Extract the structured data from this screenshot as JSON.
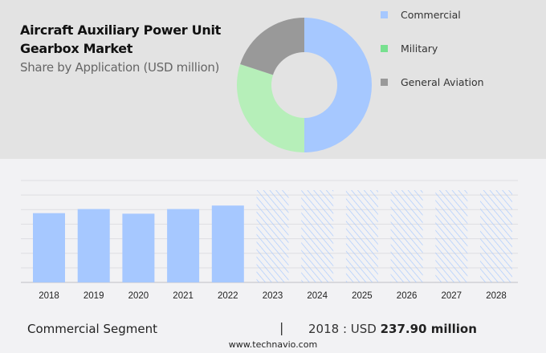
{
  "header": {
    "title": "Aircraft Auxiliary Power Unit Gearbox Market",
    "subtitle": "Share by Application (USD million)"
  },
  "chart_data": [
    {
      "type": "pie",
      "variant": "donut",
      "slices": [
        {
          "name": "Commercial",
          "value": 50,
          "color": "#a6c8ff"
        },
        {
          "name": "Military",
          "value": 30,
          "color": "#b6efb9"
        },
        {
          "name": "General Aviation",
          "value": 20,
          "color": "#999999"
        }
      ],
      "legend": {
        "placement": "right",
        "items": [
          {
            "label": "Commercial",
            "color": "#a6c8ff"
          },
          {
            "label": "Military",
            "color": "#77e08f"
          },
          {
            "label": "General Aviation",
            "color": "#999999"
          }
        ]
      }
    },
    {
      "type": "bar",
      "categories": [
        "2018",
        "2019",
        "2020",
        "2021",
        "2022",
        "2023",
        "2024",
        "2025",
        "2026",
        "2027",
        "2028"
      ],
      "values": [
        237.9,
        252,
        236,
        252,
        264,
        null,
        null,
        null,
        null,
        null,
        null
      ],
      "forecast_categories": [
        "2023",
        "2024",
        "2025",
        "2026",
        "2027",
        "2028"
      ],
      "ylim": [
        0,
        350
      ],
      "grid": true,
      "ytick_step": 50,
      "bar_color": "#a6c8ff",
      "forecast_style": "hatched"
    }
  ],
  "footer": {
    "segment": "Commercial Segment",
    "separator": "|",
    "year_prefix": "2018 : USD ",
    "value": "237.90 million",
    "site": "www.technavio.com"
  }
}
